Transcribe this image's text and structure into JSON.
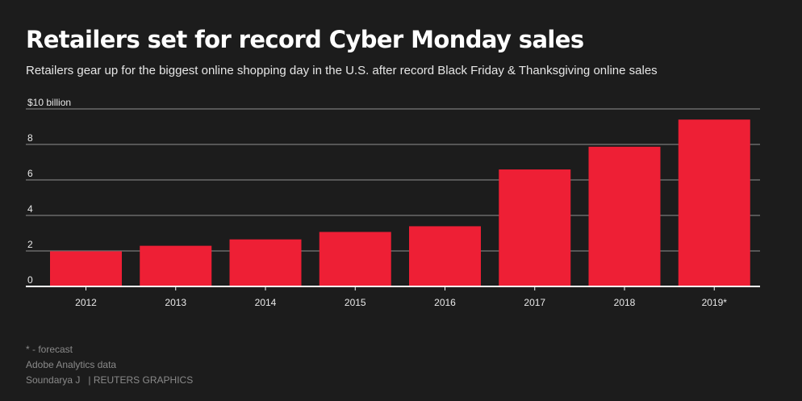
{
  "header": {
    "title": "Retailers set for record Cyber Monday sales",
    "subtitle": "Retailers gear up for the biggest online shopping day in the U.S. after record Black Friday & Thanksgiving online sales"
  },
  "footer": {
    "note": "* - forecast",
    "source": "Adobe Analytics data",
    "author": "Soundarya J",
    "credit": "| REUTERS GRAPHICS"
  },
  "colors": {
    "bar": "#ee1f35",
    "background": "#1c1c1c",
    "gridline": "#6a6a6a",
    "baseline": "#ffffff"
  },
  "chart_data": {
    "type": "bar",
    "categories": [
      "2012",
      "2013",
      "2014",
      "2015",
      "2016",
      "2017",
      "2018",
      "2019*"
    ],
    "values": [
      1.98,
      2.29,
      2.65,
      3.07,
      3.39,
      6.59,
      7.87,
      9.4
    ],
    "ylim": [
      0,
      10
    ],
    "yticks": [
      0,
      2,
      4,
      6,
      8,
      10
    ],
    "ytick_labels": [
      "0",
      "2",
      "4",
      "6",
      "8",
      "$10 billion"
    ],
    "grid": true,
    "xlabel": "",
    "ylabel": ""
  }
}
